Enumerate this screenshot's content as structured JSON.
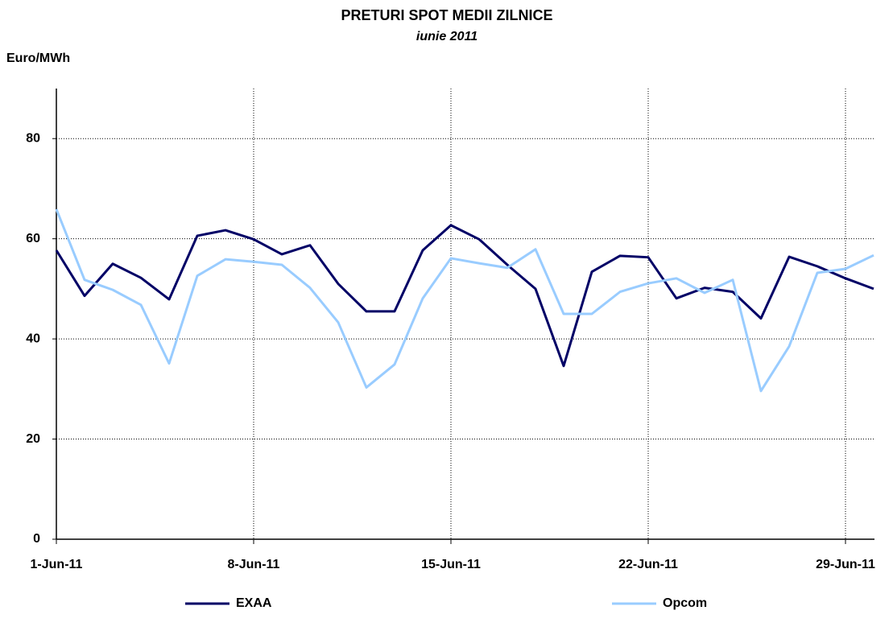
{
  "chart_data": {
    "type": "line",
    "title": "PRETURI SPOT MEDII ZILNICE",
    "subtitle": "iunie 2011",
    "y_label": "Euro/MWh",
    "categories": [
      "1-Jun-11",
      null,
      null,
      null,
      null,
      null,
      null,
      "8-Jun-11",
      null,
      null,
      null,
      null,
      null,
      null,
      "15-Jun-11",
      null,
      null,
      null,
      null,
      null,
      null,
      "22-Jun-11",
      null,
      null,
      null,
      null,
      null,
      null,
      "29-Jun-11",
      null
    ],
    "series": [
      {
        "name": "EXAA",
        "color": "#000066",
        "values": [
          57.7,
          48.6,
          55.0,
          52.2,
          47.9,
          60.6,
          61.7,
          59.9,
          56.9,
          58.7,
          51.0,
          45.5,
          45.5,
          57.7,
          62.7,
          59.9,
          54.8,
          50.0,
          34.6,
          53.4,
          56.6,
          56.3,
          48.1,
          50.2,
          49.4,
          44.1,
          56.4,
          54.5,
          52.1,
          50.0
        ]
      },
      {
        "name": "Opcom",
        "color": "#99ccff",
        "values": [
          65.9,
          51.8,
          49.8,
          46.8,
          35.1,
          52.6,
          55.9,
          55.4,
          54.8,
          50.2,
          43.3,
          30.3,
          34.9,
          48.1,
          56.1,
          55.1,
          54.2,
          57.9,
          45.0,
          45.0,
          49.4,
          51.1,
          52.1,
          49.2,
          51.8,
          29.6,
          38.5,
          53.2,
          54.0,
          56.7
        ]
      }
    ],
    "ylim": [
      0,
      90
    ],
    "yticks": [
      0,
      20,
      40,
      60,
      80
    ],
    "grid": true,
    "legend": "bottom"
  }
}
